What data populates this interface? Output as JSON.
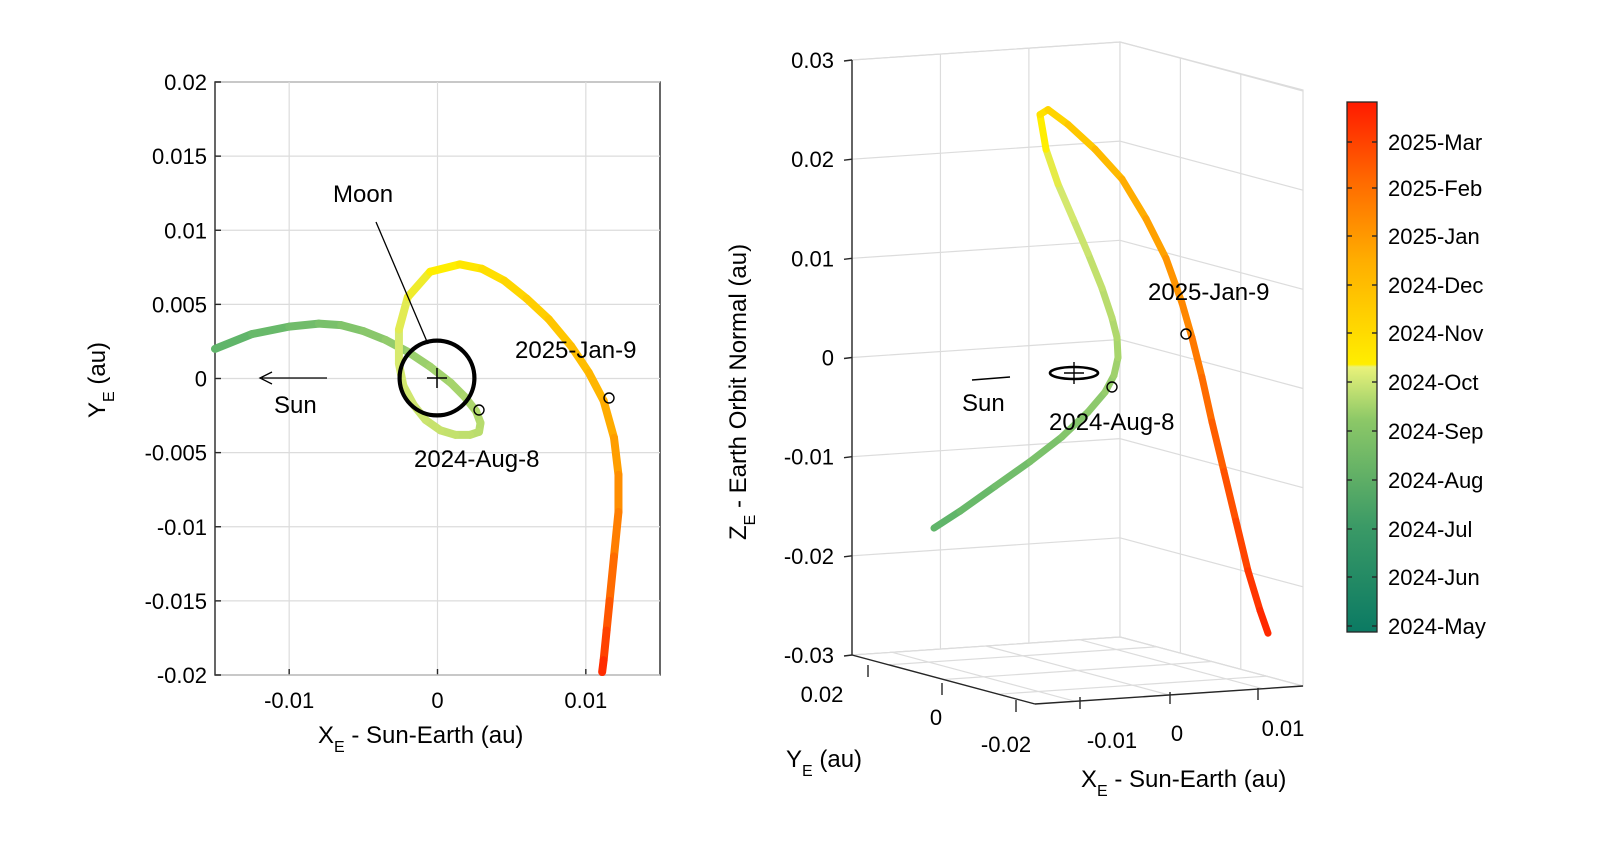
{
  "colors": {
    "trajectory_start": "#5cb36a",
    "trajectory_mid": "#ffee00",
    "trajectory_end": "#ff2200",
    "moon_orbit": "#000000"
  },
  "labels": {
    "left_xlabel_main": "X",
    "left_xlabel_sub": "E",
    "left_xlabel_rest": " - Sun-Earth (au)",
    "left_ylabel_main": "Y",
    "left_ylabel_sub": "E",
    "left_ylabel_rest": " (au)",
    "right_zlabel_main": "Z",
    "right_zlabel_sub": "E",
    "right_zlabel_rest": " - Earth Orbit Normal (au)",
    "right_ylabel_main": "Y",
    "right_ylabel_sub": "E",
    "right_ylabel_rest": " (au)",
    "right_xlabel_main": "X",
    "right_xlabel_sub": "E",
    "right_xlabel_rest": " - Sun-Earth (au)",
    "moon": "Moon",
    "sun_left": "Sun",
    "sun_right": "Sun",
    "jan9_left": "2025-Jan-9",
    "aug8_left": "2024-Aug-8",
    "jan9_right": "2025-Jan-9",
    "aug8_right": "2024-Aug-8"
  },
  "chart_data": [
    {
      "type": "line",
      "title": "",
      "xlabel": "X_E - Sun-Earth (au)",
      "ylabel": "Y_E (au)",
      "xlim": [
        -0.015,
        0.015
      ],
      "ylim": [
        -0.02,
        0.02
      ],
      "grid": true,
      "xticks": [
        -0.01,
        0,
        0.01
      ],
      "xtick_labels": [
        "-0.01",
        "0",
        "0.01"
      ],
      "yticks": [
        0.02,
        0.015,
        0.01,
        0.005,
        0,
        -0.005,
        -0.01,
        -0.015,
        -0.02
      ],
      "ytick_labels": [
        "0.02",
        "0.015",
        "0.01",
        "0.005",
        "0",
        "-0.005",
        "-0.01",
        "-0.015",
        "-0.02"
      ],
      "series": [
        {
          "x": [
            -0.015,
            -0.0125,
            -0.01,
            -0.008,
            -0.0065,
            -0.005,
            -0.0035,
            -0.002,
            -0.0005,
            0.0009,
            0.0018,
            0.0026,
            0.0029,
            0.0028,
            0.0022,
            0.0012,
            0.0002,
            -0.0008,
            -0.0016,
            -0.0023,
            -0.0026,
            -0.0026,
            -0.002,
            -0.0005,
            0.0015,
            0.003,
            0.0045,
            0.006,
            0.0075,
            0.009,
            0.0102,
            0.0112,
            0.0119,
            0.0122,
            0.0122,
            0.0119,
            0.0116,
            0.0114,
            0.0112,
            0.0111
          ],
          "y": [
            0.002,
            0.003,
            0.0035,
            0.0037,
            0.0036,
            0.0032,
            0.0026,
            0.0018,
            0.0008,
            -0.0003,
            -0.0012,
            -0.0022,
            -0.003,
            -0.0036,
            -0.0038,
            -0.0038,
            -0.0035,
            -0.0028,
            -0.0018,
            -0.0005,
            0.001,
            0.0033,
            0.0055,
            0.0072,
            0.0077,
            0.0074,
            0.0066,
            0.0054,
            0.004,
            0.0022,
            0.0004,
            -0.0015,
            -0.004,
            -0.0065,
            -0.009,
            -0.012,
            -0.015,
            -0.017,
            -0.019,
            -0.0198
          ],
          "time_fraction": [
            0,
            0.03,
            0.06,
            0.09,
            0.12,
            0.15,
            0.18,
            0.21,
            0.24,
            0.26,
            0.28,
            0.3,
            0.32,
            0.335,
            0.35,
            0.365,
            0.38,
            0.395,
            0.41,
            0.425,
            0.44,
            0.455,
            0.47,
            0.49,
            0.51,
            0.53,
            0.55,
            0.57,
            0.59,
            0.61,
            0.63,
            0.65,
            0.68,
            0.72,
            0.76,
            0.8,
            0.85,
            0.9,
            0.95,
            1.0
          ]
        }
      ],
      "moon_orbit": {
        "center": [
          0,
          0
        ],
        "radius_au": 0.00257
      },
      "markers": [
        {
          "label": "2024-Aug-8",
          "x": 0.0028,
          "y": -0.0022
        },
        {
          "label": "2025-Jan-9",
          "x": 0.0117,
          "y": -0.0014
        }
      ],
      "annotations": [
        "Moon",
        "Sun"
      ]
    },
    {
      "type": "line",
      "title": "",
      "xlabel": "X_E - Sun-Earth (au)",
      "ylabel": "Y_E (au)",
      "zlabel": "Z_E - Earth Orbit Normal (au)",
      "zlim": [
        -0.03,
        0.03
      ],
      "grid": true,
      "zticks": [
        0.03,
        0.02,
        0.01,
        0,
        -0.01,
        -0.02,
        -0.03
      ],
      "ztick_labels": [
        "0.03",
        "0.02",
        "0.01",
        "0",
        "-0.01",
        "-0.02",
        "-0.03"
      ],
      "yticks": [
        0.02,
        0,
        -0.02
      ],
      "ytick_labels": [
        "0.02",
        "0",
        "-0.02"
      ],
      "xticks": [
        -0.01,
        0,
        0.01
      ],
      "xtick_labels": [
        "-0.01",
        "0",
        "0.01"
      ],
      "z_series": [
        -0.0172,
        -0.0155,
        -0.013,
        -0.0105,
        -0.008,
        -0.0055,
        -0.0035,
        -0.0018,
        0.0,
        0.002,
        0.004,
        0.007,
        0.0105,
        0.014,
        0.0175,
        0.021,
        0.0245,
        0.025,
        0.0235,
        0.021,
        0.018,
        0.014,
        0.01,
        0.0055,
        0.002,
        -0.002,
        -0.0065,
        -0.0115,
        -0.0165,
        -0.0215,
        -0.0255,
        -0.0278
      ],
      "markers": [
        {
          "label": "2024-Aug-8",
          "z": -0.0035
        },
        {
          "label": "2025-Jan-9",
          "z": 0.002
        }
      ],
      "annotations": [
        "Sun"
      ]
    },
    {
      "type": "heatmap",
      "role": "colorbar",
      "tick_labels": [
        "2025-Mar",
        "2025-Feb",
        "2025-Jan",
        "2024-Dec",
        "2024-Nov",
        "2024-Oct",
        "2024-Sep",
        "2024-Aug",
        "2024-Jul",
        "2024-Jun",
        "2024-May"
      ],
      "colors_bottom_to_top": [
        "#0b7a63",
        "#2e8e63",
        "#5cb36a",
        "#8cc867",
        "#c6e16a",
        "#e9f27a",
        "#ffee00",
        "#ffbe00",
        "#ff8a00",
        "#ff5500",
        "#ff1a00"
      ]
    }
  ]
}
